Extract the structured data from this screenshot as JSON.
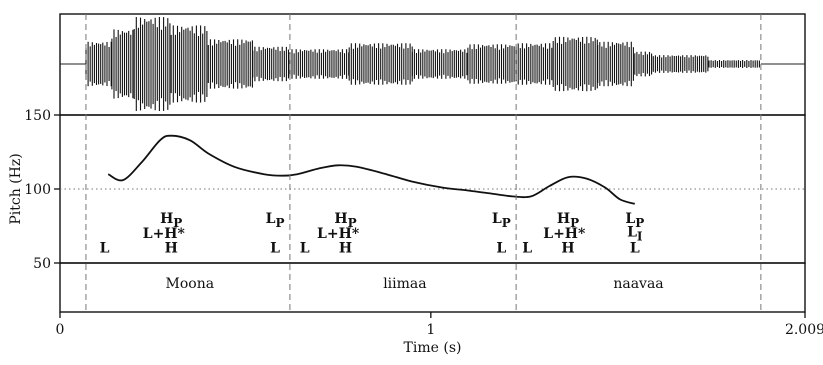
{
  "chart_data": {
    "type": "line",
    "x_axis": {
      "label": "Time (s)",
      "range": [
        0,
        2.009
      ],
      "tick_labels": [
        {
          "value": 0,
          "text": "0"
        },
        {
          "value": 1,
          "text": "1"
        },
        {
          "value": 2.009,
          "text": "2.009"
        }
      ]
    },
    "y_axis": {
      "label": "Pitch (Hz)",
      "range": [
        50,
        150
      ],
      "tick_labels": [
        {
          "value": 150,
          "text": "150"
        },
        {
          "value": 100,
          "text": "100"
        },
        {
          "value": 50,
          "text": "50"
        }
      ],
      "reference_line": 100
    },
    "boundaries": [
      0.07,
      0.62,
      1.23,
      1.89
    ],
    "series": [
      {
        "x": [
          0.13,
          0.17,
          0.22,
          0.27,
          0.3,
          0.35,
          0.4,
          0.47,
          0.55,
          0.6,
          0.64,
          0.7,
          0.75,
          0.8,
          0.88,
          0.95,
          1.03,
          1.1,
          1.16,
          1.22,
          1.27,
          1.32,
          1.37,
          1.42,
          1.47,
          1.51,
          1.55
        ],
        "y": [
          110,
          106,
          118,
          133,
          136,
          133,
          124,
          115,
          110,
          109,
          110,
          114,
          116,
          115,
          110,
          105,
          101,
          99,
          97,
          95,
          95,
          102,
          108,
          107,
          101,
          93,
          90
        ]
      }
    ],
    "waveform": {
      "segments": [
        {
          "t_start": 0.07,
          "t_end": 0.14,
          "amplitude": 0.45
        },
        {
          "t_start": 0.14,
          "t_end": 0.2,
          "amplitude": 0.7
        },
        {
          "t_start": 0.2,
          "t_end": 0.3,
          "amplitude": 0.95
        },
        {
          "t_start": 0.3,
          "t_end": 0.4,
          "amplitude": 0.78
        },
        {
          "t_start": 0.4,
          "t_end": 0.52,
          "amplitude": 0.5
        },
        {
          "t_start": 0.52,
          "t_end": 0.62,
          "amplitude": 0.35
        },
        {
          "t_start": 0.62,
          "t_end": 0.78,
          "amplitude": 0.3
        },
        {
          "t_start": 0.78,
          "t_end": 0.95,
          "amplitude": 0.42
        },
        {
          "t_start": 0.95,
          "t_end": 1.1,
          "amplitude": 0.3
        },
        {
          "t_start": 1.1,
          "t_end": 1.23,
          "amplitude": 0.4
        },
        {
          "t_start": 1.23,
          "t_end": 1.33,
          "amplitude": 0.42
        },
        {
          "t_start": 1.33,
          "t_end": 1.45,
          "amplitude": 0.55
        },
        {
          "t_start": 1.45,
          "t_end": 1.55,
          "amplitude": 0.45
        },
        {
          "t_start": 1.55,
          "t_end": 1.6,
          "amplitude": 0.25
        },
        {
          "t_start": 1.6,
          "t_end": 1.75,
          "amplitude": 0.18
        },
        {
          "t_start": 1.75,
          "t_end": 1.89,
          "amplitude": 0.08
        }
      ]
    },
    "tone_labels": [
      {
        "x": 0.12,
        "y": 57,
        "text": "L"
      },
      {
        "x": 0.3,
        "y": 77,
        "text": "H",
        "sub": "P"
      },
      {
        "x": 0.28,
        "y": 67,
        "text": "L+H*"
      },
      {
        "x": 0.3,
        "y": 57,
        "text": "H"
      },
      {
        "x": 0.58,
        "y": 77,
        "text": "L",
        "sub": "P"
      },
      {
        "x": 0.58,
        "y": 57,
        "text": "L"
      },
      {
        "x": 0.66,
        "y": 57,
        "text": "L"
      },
      {
        "x": 0.77,
        "y": 77,
        "text": "H",
        "sub": "P"
      },
      {
        "x": 0.75,
        "y": 67,
        "text": "L+H*"
      },
      {
        "x": 0.77,
        "y": 57,
        "text": "H"
      },
      {
        "x": 1.19,
        "y": 77,
        "text": "L",
        "sub": "P"
      },
      {
        "x": 1.19,
        "y": 57,
        "text": "L"
      },
      {
        "x": 1.26,
        "y": 57,
        "text": "L"
      },
      {
        "x": 1.37,
        "y": 77,
        "text": "H",
        "sub": "P"
      },
      {
        "x": 1.36,
        "y": 67,
        "text": "L+H*"
      },
      {
        "x": 1.37,
        "y": 57,
        "text": "H"
      },
      {
        "x": 1.55,
        "y": 77,
        "text": "L",
        "sub": "P"
      },
      {
        "x": 1.55,
        "y": 68,
        "text": "L",
        "sub": "I"
      },
      {
        "x": 1.55,
        "y": 57,
        "text": "L"
      }
    ],
    "words": [
      {
        "x": 0.35,
        "text": "Moona"
      },
      {
        "x": 0.93,
        "text": "liimaa"
      },
      {
        "x": 1.56,
        "text": "naavaa"
      }
    ]
  }
}
